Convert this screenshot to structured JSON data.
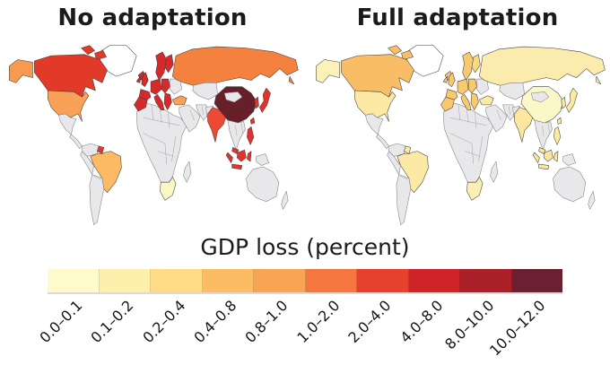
{
  "panels": [
    {
      "id": "no_adaptation",
      "title": "No adaptation"
    },
    {
      "id": "full_adaptation",
      "title": "Full adaptation"
    }
  ],
  "legend": {
    "title": "GDP loss (percent)",
    "no_data_color": "#E8E8EA",
    "ocean_color": "#FFFFFF",
    "classes": [
      {
        "label": "0.0–0.1",
        "color": "#FFFAC9"
      },
      {
        "label": "0.1–0.2",
        "color": "#FEF0AC"
      },
      {
        "label": "0.2–0.4",
        "color": "#FDDC85"
      },
      {
        "label": "0.4–0.8",
        "color": "#FBBC64"
      },
      {
        "label": "0.8–1.0",
        "color": "#F9A452"
      },
      {
        "label": "1.0–2.0",
        "color": "#F5763F"
      },
      {
        "label": "2.0–4.0",
        "color": "#E6402E"
      },
      {
        "label": "4.0–8.0",
        "color": "#CE2428"
      },
      {
        "label": "8.0–10.0",
        "color": "#AB2028"
      },
      {
        "label": "10.0–12.0",
        "color": "#6A2030"
      }
    ]
  },
  "region_colors": {
    "no_adaptation": {
      "greenland": "#FFFFFF",
      "iceland": "#D6292C",
      "arctic_islands": "#E23A29",
      "alaska": "#F79A4E",
      "canada": "#E23A29",
      "usa": "#F9A156",
      "guyana": "#E23A29",
      "brazil": "#FBBA63",
      "south_africa": "#FAF9C5",
      "iberia": "#D6292C",
      "france": "#D6292C",
      "uk": "#D6292C",
      "ireland": "#D6292C",
      "scandinavia": "#D6292C",
      "finland": "#D6292C",
      "central_europe": "#D6292C",
      "eastern_europe": "#D6292C",
      "italy": "#D6292C",
      "balkans": "#D6292C",
      "russia": "#F5813E",
      "turkey": "#F9A156",
      "india": "#EE4A33",
      "china": "#671F29",
      "malaysia": "#E2332D",
      "indonesia": "#E2332D",
      "philippines": "#E2332D",
      "taiwan": "#E2332D",
      "korea": "#E2332D",
      "japan": "#E2332D"
    },
    "full_adaptation": {
      "greenland": "#FFFFFF",
      "iceland": "#F9C96E",
      "arctic_islands": "#F9BD66",
      "alaska": "#FCF2B8",
      "canada": "#F9BD66",
      "usa": "#FBE9A4",
      "guyana": "#FBE9A4",
      "brazil": "#FBE9A4",
      "south_africa": "#FBEFB3",
      "iberia": "#F9C96E",
      "france": "#F9C96E",
      "uk": "#F9C96E",
      "ireland": "#F9C96E",
      "scandinavia": "#F9C96E",
      "finland": "#FBD77F",
      "central_europe": "#F9C96E",
      "eastern_europe": "#F9C96E",
      "italy": "#F9C96E",
      "balkans": "#F9C96E",
      "russia": "#FBECAD",
      "turkey": "#FBEBA8",
      "india": "#FBE79E",
      "china": "#FAF8C6",
      "malaysia": "#FBE49C",
      "indonesia": "#FBE49C",
      "philippines": "#FBE9A4",
      "taiwan": "#FBE9A4",
      "korea": "#FBE9A4",
      "japan": "#FBE9A4"
    }
  },
  "chart_data": {
    "type": "heatmap",
    "subtype": "world-choropleth-pair",
    "legend_title": "GDP loss (percent)",
    "classes": [
      "0.0–0.1",
      "0.1–0.2",
      "0.2–0.4",
      "0.4–0.8",
      "0.8–1.0",
      "1.0–2.0",
      "2.0–4.0",
      "4.0–8.0",
      "8.0–10.0",
      "10.0–12.0"
    ],
    "palette": [
      "#FFFAC9",
      "#FEF0AC",
      "#FDDC85",
      "#FBBC64",
      "#F9A452",
      "#F5763F",
      "#E6402E",
      "#CE2428",
      "#AB2028",
      "#6A2030"
    ],
    "legend_position": "bottom",
    "maps": [
      {
        "title": "No adaptation",
        "regions": {
          "Canada": "2.0–4.0",
          "United States": "0.8–1.0",
          "Guyana/Suriname": "2.0–4.0",
          "Brazil": "0.4–0.8",
          "European Union": "4.0–8.0",
          "United Kingdom": "4.0–8.0",
          "Russia": "1.0–2.0",
          "Turkey": "0.8–1.0",
          "India": "2.0–4.0",
          "China": "10.0–12.0",
          "South Korea": "2.0–4.0",
          "Japan": "2.0–4.0",
          "Indonesia": "2.0–4.0",
          "Malaysia": "2.0–4.0",
          "Philippines": "2.0–4.0",
          "South Africa": "0.0–0.1"
        },
        "no_data_regions": [
          "Mexico",
          "Central America",
          "most of South America",
          "most of Africa",
          "Middle East",
          "Central Asia",
          "Mongolia",
          "mainland Southeast Asia",
          "Australia",
          "New Zealand"
        ]
      },
      {
        "title": "Full adaptation",
        "regions": {
          "Canada": "0.4–0.8",
          "United States": "0.1–0.2",
          "Guyana/Suriname": "0.1–0.2",
          "Brazil": "0.1–0.2",
          "European Union": "0.2–0.4",
          "United Kingdom": "0.2–0.4",
          "Russia": "0.1–0.2",
          "Turkey": "0.1–0.2",
          "India": "0.1–0.2",
          "China": "0.0–0.1",
          "South Korea": "0.1–0.2",
          "Japan": "0.1–0.2",
          "Indonesia": "0.1–0.2",
          "Malaysia": "0.1–0.2",
          "Philippines": "0.1–0.2",
          "South Africa": "0.0–0.1"
        },
        "no_data_regions": [
          "Mexico",
          "Central America",
          "most of South America",
          "most of Africa",
          "Middle East",
          "Central Asia",
          "Mongolia",
          "mainland Southeast Asia",
          "Australia",
          "New Zealand"
        ]
      }
    ]
  }
}
